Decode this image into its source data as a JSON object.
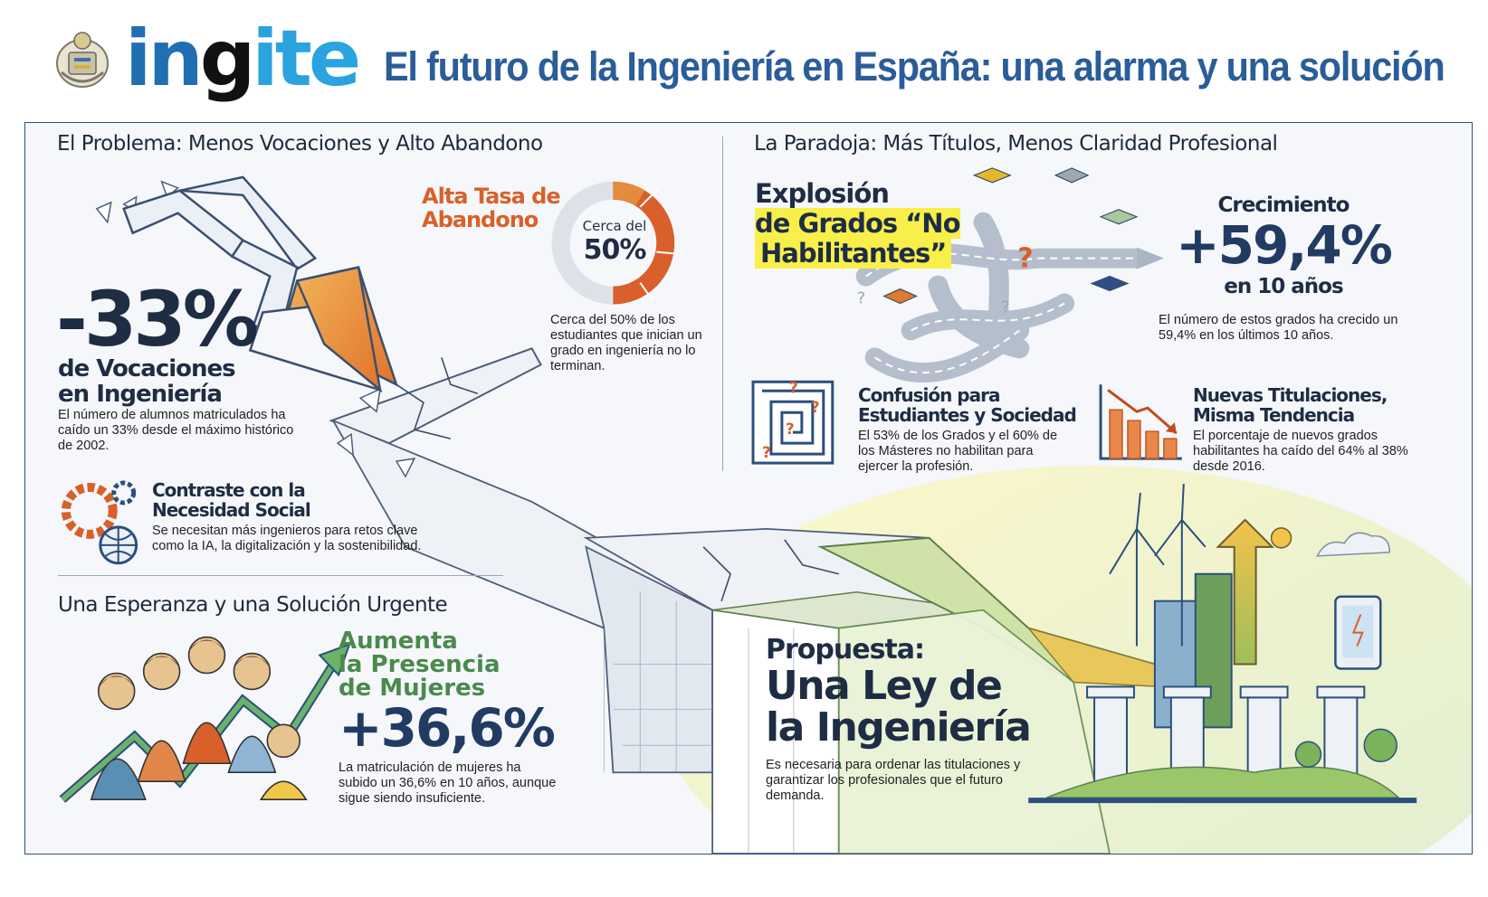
{
  "header": {
    "brand": {
      "part1": "in",
      "part2": "g",
      "part3": "ite"
    },
    "title": "El futuro de la Ingeniería en España: una alarma y una solución",
    "seal_icon": "coat-of-arms-icon"
  },
  "problem": {
    "section_title": "El Problema: Menos Vocaciones y Alto Abandono",
    "vocations_value": "-33%",
    "vocations_label_line1": "de Vocaciones",
    "vocations_label_line2": "en Ingeniería",
    "vocations_desc": "El número de alumnos matriculados ha caído un 33% desde el máximo histórico de 2002.",
    "dropout_title_line1": "Alta Tasa de",
    "dropout_title_line2": "Abandono",
    "dropout_gauge_label": "Cerca del",
    "dropout_gauge_value": "50%",
    "dropout_fraction": 0.5,
    "dropout_desc": "Cerca del 50% de los estudiantes que inician un grado en ingeniería no lo terminan.",
    "contrast_title_line1": "Contraste con la",
    "contrast_title_line2": "Necesidad Social",
    "contrast_desc": "Se necesitan más ingenieros para retos clave como la IA, la digitalización y la sostenibilidad."
  },
  "paradox": {
    "section_title": "La Paradoja: Más Títulos, Menos Claridad Profesional",
    "explosion_line1": "Explosión",
    "explosion_line2": "de Grados “No",
    "explosion_line3": "Habilitantes”",
    "growth_label": "Crecimiento",
    "growth_value": "+59,4%",
    "growth_period": "en 10 años",
    "growth_desc": "El número de estos grados ha crecido un 59,4% en los últimos 10 años.",
    "confusion_title_line1": "Confusión para",
    "confusion_title_line2": "Estudiantes y Sociedad",
    "confusion_desc": "El 53% de los Grados y el 60% de los Másteres no habilitan para ejercer la profesión.",
    "new_titles_line1": "Nuevas Titulaciones,",
    "new_titles_line2": "Misma Tendencia",
    "new_titles_desc": "El porcentaje de nuevos grados habilitantes ha caído del 64% al 38% desde 2016."
  },
  "hope": {
    "section_title": "Una Esperanza y una Solución Urgente",
    "women_line1": "Aumenta",
    "women_line2": "la Presencia",
    "women_line3": "de Mujeres",
    "women_value": "+36,6%",
    "women_desc": "La matriculación de mujeres ha subido un 36,6% en 10 años, aunque sigue siendo insuficiente."
  },
  "proposal": {
    "label": "Propuesta:",
    "title_line1": "Una Ley de",
    "title_line2": "la Ingeniería",
    "desc": "Es necesaria para ordenar las titulaciones y garantizar los profesionales que el futuro demanda."
  },
  "colors": {
    "navy": "#1e2d44",
    "title_blue": "#2a5d9a",
    "orange": "#d9602b",
    "green": "#4a8a4c",
    "yellow": "#f8ef4b"
  }
}
